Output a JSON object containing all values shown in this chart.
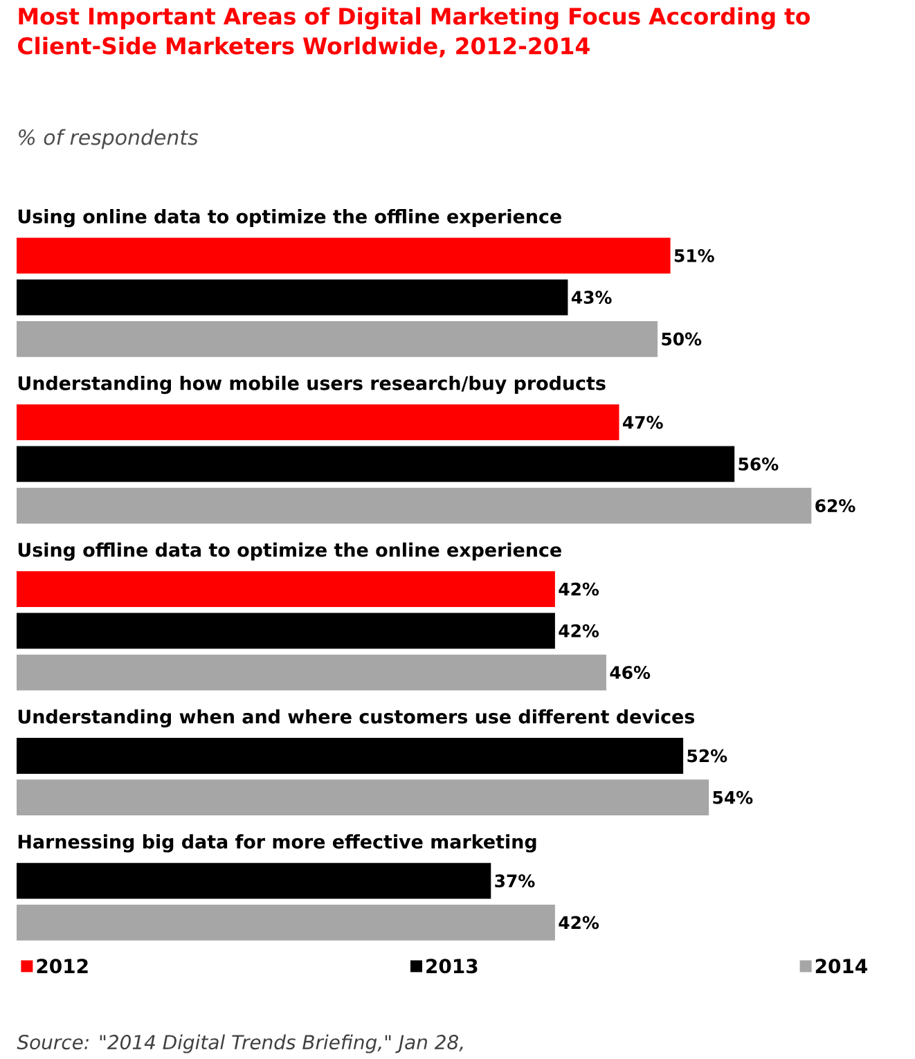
{
  "chart_data": {
    "type": "bar",
    "orientation": "horizontal",
    "title": "Most Important Areas of Digital Marketing Focus According to Client-Side Marketers Worldwide, 2012-2014",
    "subtitle": "% of respondents",
    "categories": [
      "Using online data to optimize the offline experience",
      "Understanding how mobile users research/buy products",
      "Using offline data to optimize the online experience",
      "Understanding when and where customers use different devices",
      "Harnessing big data for more effective marketing"
    ],
    "series": [
      {
        "name": "2012",
        "color": "#ff0000",
        "values": [
          51,
          47,
          42,
          null,
          null
        ],
        "value_labels": [
          "51%",
          "47%",
          "42%",
          null,
          null
        ]
      },
      {
        "name": "2013",
        "color": "#000000",
        "values": [
          43,
          56,
          42,
          52,
          37
        ],
        "value_labels": [
          "43%",
          "56%",
          "42%",
          "52%",
          "37%"
        ]
      },
      {
        "name": "2014",
        "color": "#a6a6a6",
        "values": [
          50,
          62,
          46,
          54,
          42
        ],
        "value_labels": [
          "50%",
          "62%",
          "46%",
          "54%",
          "42%"
        ]
      }
    ],
    "legend": "bottom",
    "annotations": [
      "Source: \"2014 Digital Trends Briefing,\" Jan 28,"
    ]
  }
}
